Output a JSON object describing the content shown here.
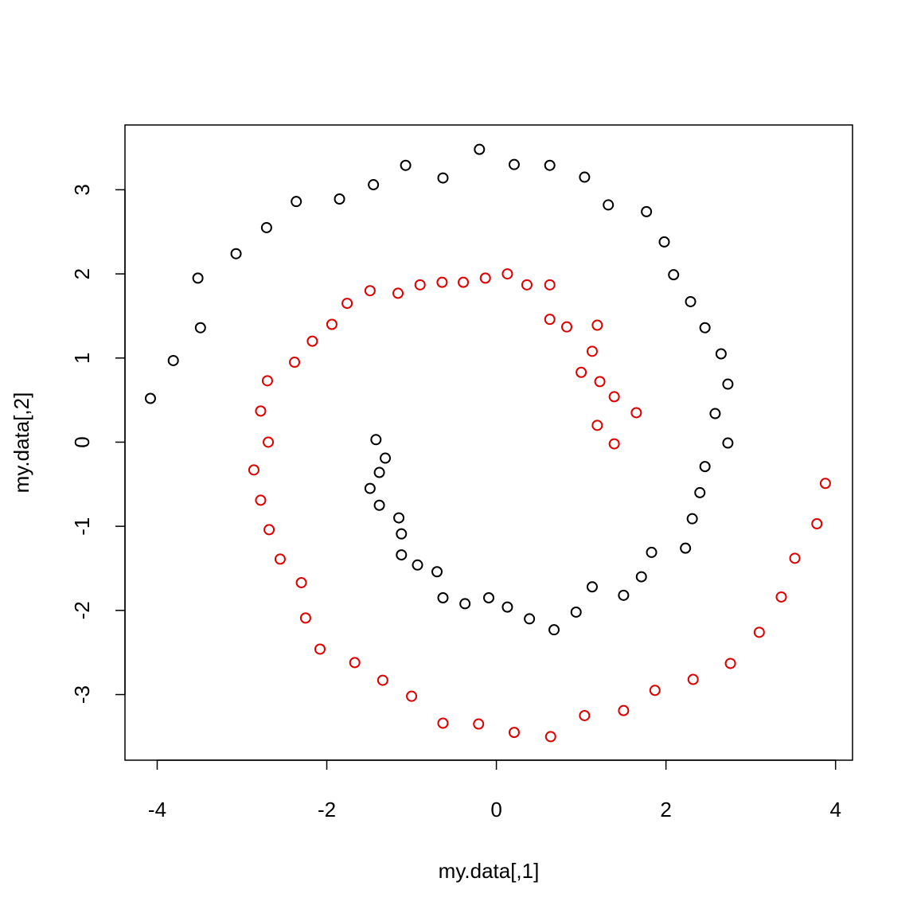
{
  "chart_data": {
    "type": "scatter",
    "title": "",
    "xlabel": "my.data[,1]",
    "ylabel": "my.data[,2]",
    "xlim": [
      -4.38,
      4.2
    ],
    "ylim": [
      -3.78,
      3.77
    ],
    "xticks": [
      -4,
      -2,
      0,
      2,
      4
    ],
    "yticks": [
      -3,
      -2,
      -1,
      0,
      1,
      2,
      3
    ],
    "grid": false,
    "legend": "none",
    "marker": "open-circle",
    "series": [
      {
        "color": "#000000",
        "x": [
          -4.08,
          -3.81,
          -3.49,
          -3.52,
          -3.07,
          -2.71,
          -2.36,
          -1.85,
          -1.45,
          -1.07,
          -0.63,
          -0.2,
          0.21,
          0.63,
          1.04,
          1.32,
          1.77,
          1.98,
          2.09,
          2.29,
          2.46,
          2.65,
          2.73,
          2.58,
          2.73,
          2.46,
          2.4,
          2.31,
          2.23,
          1.83,
          1.71,
          1.5,
          1.13,
          0.94,
          0.68,
          0.39,
          0.13,
          -0.09,
          -0.37,
          -0.63,
          -0.7,
          -0.93,
          -1.12,
          -1.12,
          -1.15,
          -1.38,
          -1.49,
          -1.38,
          -1.31,
          -1.42
        ],
        "y": [
          0.52,
          0.97,
          1.36,
          1.95,
          2.24,
          2.55,
          2.86,
          2.89,
          3.06,
          3.29,
          3.14,
          3.48,
          3.3,
          3.29,
          3.15,
          2.82,
          2.74,
          2.38,
          1.99,
          1.67,
          1.36,
          1.05,
          0.69,
          0.34,
          -0.01,
          -0.29,
          -0.6,
          -0.91,
          -1.26,
          -1.31,
          -1.6,
          -1.82,
          -1.72,
          -2.02,
          -2.23,
          -2.1,
          -1.96,
          -1.85,
          -1.92,
          -1.85,
          -1.54,
          -1.46,
          -1.34,
          -1.09,
          -0.9,
          -0.75,
          -0.55,
          -0.36,
          -0.19,
          0.03
        ]
      },
      {
        "color": "#dd0000",
        "x": [
          3.88,
          3.78,
          3.52,
          3.36,
          3.1,
          2.76,
          2.32,
          1.87,
          1.5,
          1.04,
          0.64,
          0.21,
          -0.21,
          -0.63,
          -1.0,
          -1.34,
          -1.67,
          -2.08,
          -2.25,
          -2.3,
          -2.55,
          -2.68,
          -2.78,
          -2.86,
          -2.69,
          -2.78,
          -2.7,
          -2.38,
          -2.17,
          -1.94,
          -1.76,
          -1.49,
          -1.16,
          -0.9,
          -0.64,
          -0.39,
          -0.13,
          0.13,
          0.36,
          0.63,
          0.63,
          0.83,
          1.19,
          1.13,
          1.0,
          1.22,
          1.39,
          1.65,
          1.19,
          1.39
        ],
        "y": [
          -0.49,
          -0.97,
          -1.38,
          -1.84,
          -2.26,
          -2.63,
          -2.82,
          -2.95,
          -3.19,
          -3.25,
          -3.5,
          -3.45,
          -3.35,
          -3.34,
          -3.02,
          -2.83,
          -2.62,
          -2.46,
          -2.09,
          -1.67,
          -1.39,
          -1.04,
          -0.69,
          -0.33,
          0.0,
          0.37,
          0.73,
          0.95,
          1.2,
          1.4,
          1.65,
          1.8,
          1.77,
          1.87,
          1.9,
          1.9,
          1.95,
          2.0,
          1.87,
          1.87,
          1.46,
          1.37,
          1.39,
          1.08,
          0.83,
          0.72,
          0.54,
          0.35,
          0.2,
          -0.02
        ]
      }
    ]
  }
}
